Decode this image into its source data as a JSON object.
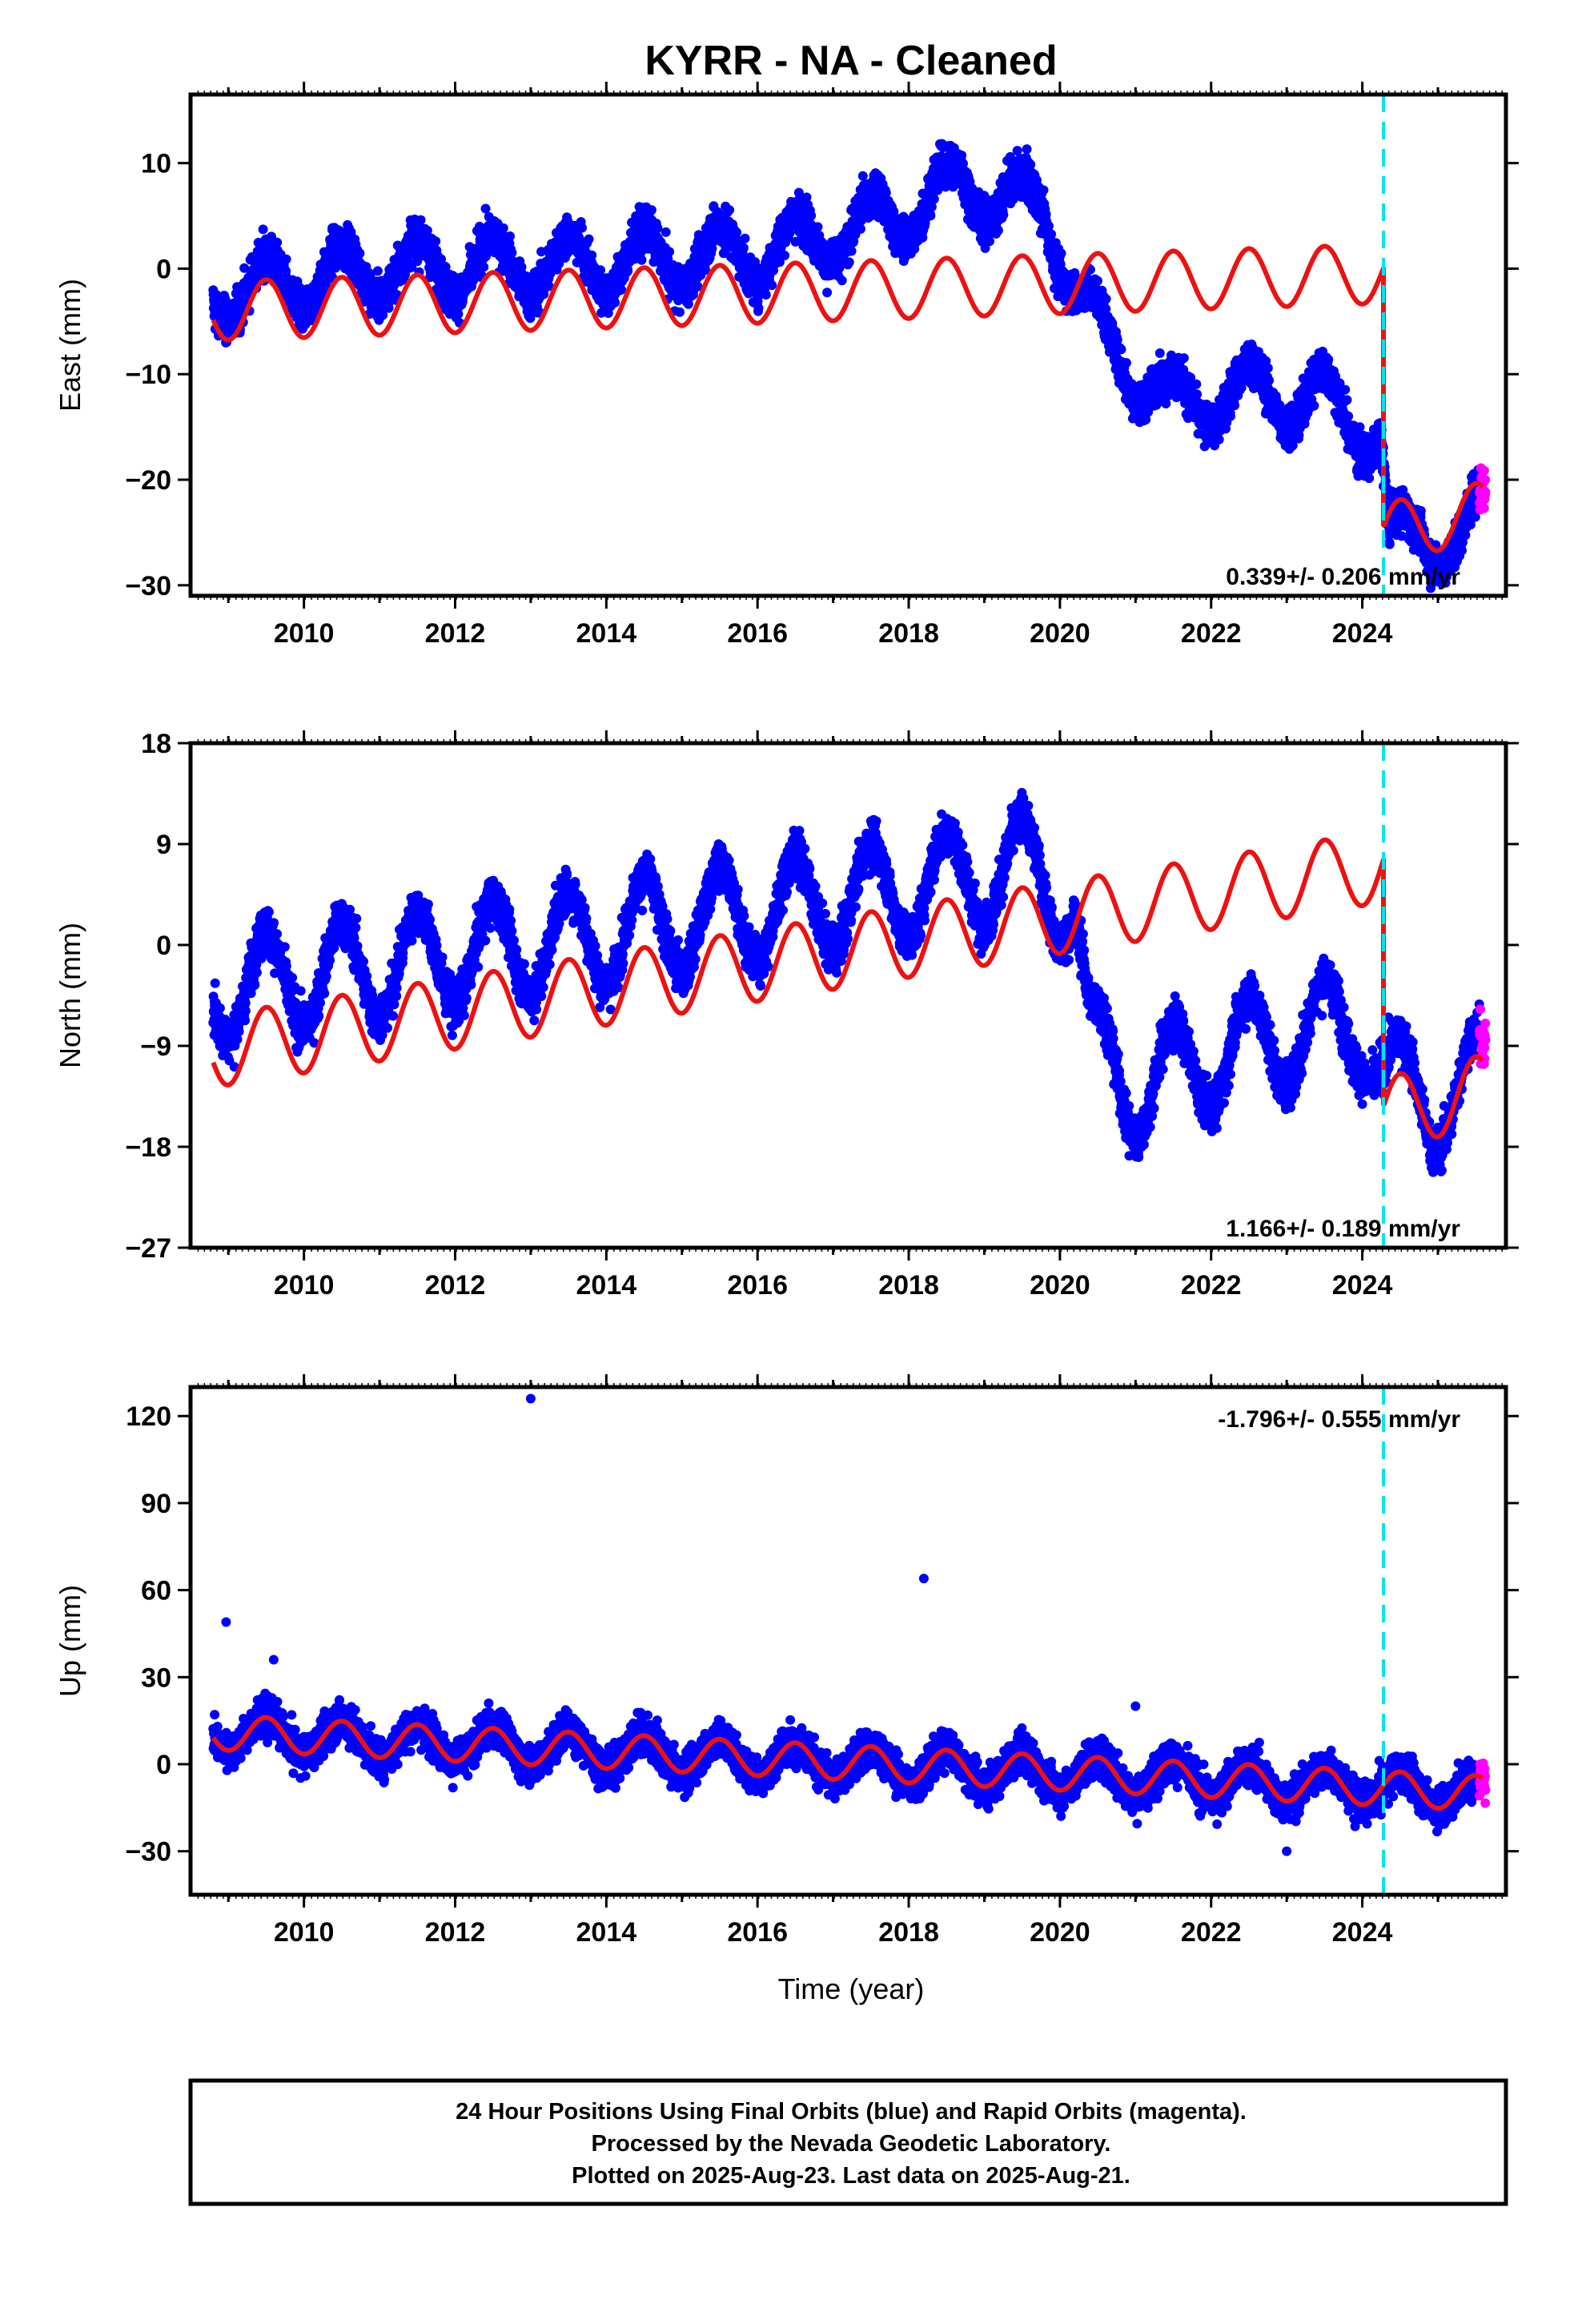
{
  "chart_data": {
    "title": "KYRR  - NA - Cleaned",
    "xlabel": "Time (year)",
    "x_ticks": [
      2010,
      2012,
      2014,
      2016,
      2018,
      2020,
      2022,
      2024
    ],
    "xlim": [
      2008.5,
      2025.9
    ],
    "offset_epoch": 2024.28,
    "panels": [
      {
        "type": "scatter",
        "name": "east",
        "ylabel": "East (mm)",
        "ylim": [
          -31,
          16.5
        ],
        "y_ticks": [
          -30,
          -20,
          -10,
          0,
          10
        ],
        "y_tick_labels": [
          "−30",
          "−20",
          "−10",
          "0",
          "10"
        ],
        "rate": "0.339+/- 0.206 mm/yr",
        "rate_position": "bottom-right",
        "data_trend": [
          [
            2008.8,
            -2.5
          ],
          [
            2011.0,
            0
          ],
          [
            2014.0,
            0.5
          ],
          [
            2016.0,
            1.5
          ],
          [
            2017.5,
            4
          ],
          [
            2018.7,
            8
          ],
          [
            2019.8,
            5.5
          ],
          [
            2020.3,
            -3
          ],
          [
            2020.6,
            -7
          ],
          [
            2021.5,
            -13
          ],
          [
            2022.5,
            -11.5
          ],
          [
            2023.5,
            -12.5
          ],
          [
            2024.25,
            -16
          ],
          [
            2024.35,
            -26
          ],
          [
            2024.8,
            -25
          ],
          [
            2025.3,
            -26
          ],
          [
            2025.6,
            -23
          ]
        ],
        "data_amplitude": 2.8,
        "model_trend": [
          [
            2008.8,
            -4
          ],
          [
            2024.28,
            -0.5
          ],
          [
            2024.29,
            -25
          ],
          [
            2025.6,
            -23
          ]
        ],
        "model_amplitude": 2.8
      },
      {
        "type": "scatter",
        "name": "north",
        "ylabel": "North (mm)",
        "ylim": [
          -27,
          18
        ],
        "y_ticks": [
          -27,
          -18,
          -9,
          0,
          9,
          18
        ],
        "y_tick_labels": [
          "−27",
          "−18",
          "−9",
          "0",
          "9",
          "18"
        ],
        "rate": "1.166+/- 0.189 mm/yr",
        "rate_position": "bottom-right",
        "data_trend": [
          [
            2008.8,
            -4
          ],
          [
            2012.0,
            -1
          ],
          [
            2014.0,
            1
          ],
          [
            2016.0,
            3
          ],
          [
            2018.0,
            5
          ],
          [
            2019.5,
            7
          ],
          [
            2020.2,
            4
          ],
          [
            2020.4,
            -9
          ],
          [
            2021.0,
            -13
          ],
          [
            2022.0,
            -10
          ],
          [
            2023.0,
            -8
          ],
          [
            2024.0,
            -7
          ],
          [
            2024.3,
            -12
          ],
          [
            2024.9,
            -14
          ],
          [
            2025.6,
            -12
          ]
        ],
        "data_amplitude": 4.5,
        "model_trend": [
          [
            2008.8,
            -9.5
          ],
          [
            2024.28,
            7
          ],
          [
            2024.29,
            -15
          ],
          [
            2025.6,
            -13
          ]
        ],
        "model_amplitude": 3.2
      },
      {
        "type": "scatter",
        "name": "up",
        "ylabel": "Up (mm)",
        "ylim": [
          -45,
          130
        ],
        "y_ticks": [
          -30,
          0,
          30,
          60,
          90,
          120
        ],
        "y_tick_labels": [
          "−30",
          "0",
          "30",
          "60",
          "90",
          "120"
        ],
        "rate": "-1.796+/- 0.555 mm/yr",
        "rate_position": "top-right",
        "data_trend": [
          [
            2008.8,
            11
          ],
          [
            2025.6,
            -10
          ]
        ],
        "data_amplitude": 6,
        "model_trend": [
          [
            2008.8,
            11
          ],
          [
            2025.6,
            -10
          ]
        ],
        "model_amplitude": 6,
        "outliers": [
          [
            2008.97,
            49
          ],
          [
            2013.0,
            126
          ],
          [
            2018.2,
            64
          ],
          [
            2009.6,
            36
          ],
          [
            2021.0,
            20
          ],
          [
            2023.0,
            -30
          ]
        ]
      }
    ],
    "series": [
      {
        "name": "Final Orbits",
        "color": "#0000ff"
      },
      {
        "name": "Rapid Orbits",
        "color": "#ff00ff"
      },
      {
        "name": "model",
        "color": "#ee1111"
      },
      {
        "name": "offset",
        "color": "#00e5ee"
      }
    ],
    "series_note": "Series names come from the footer text; the model curve and dashed offset line are not printed on the chart.",
    "footer": [
      "24 Hour Positions Using Final Orbits (blue) and Rapid Orbits (magenta).",
      "Processed by the Nevada Geodetic Laboratory.",
      "Plotted on 2025-Aug-23. Last data on 2025-Aug-21."
    ]
  }
}
